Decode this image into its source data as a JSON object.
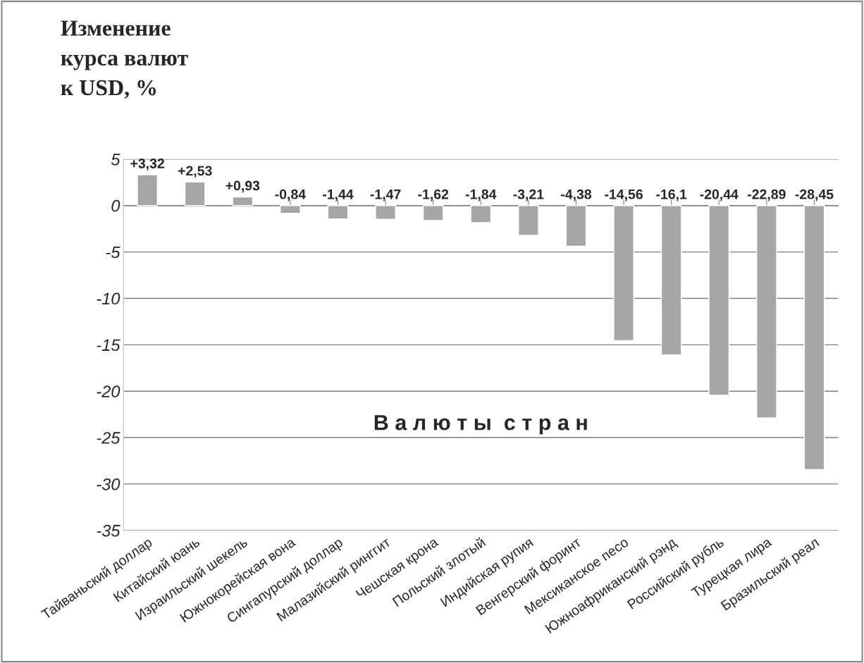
{
  "chart_data": {
    "type": "bar",
    "title": "Изменение\nкурса валют\nк USD, %",
    "xlabel": "В а л ю т ы  с т р а н",
    "categories": [
      "Тайваньский доллар",
      "Китайский юань",
      "Израильский шекель",
      "Южнокорейская вона",
      "Сингапурский доллар",
      "Малазийский ринггит",
      "Чешская крона",
      "Польский злотый",
      "Индийская рупия",
      "Венгерский форинт",
      "Мексиканское песо",
      "Южноафриканский рэнд",
      "Российский рубль",
      "Турецкая лира",
      "Бразильский реал"
    ],
    "values": [
      3.32,
      2.53,
      0.93,
      -0.84,
      -1.44,
      -1.47,
      -1.62,
      -1.84,
      -3.21,
      -4.38,
      -14.56,
      -16.1,
      -20.44,
      -22.89,
      -28.45
    ],
    "value_labels": [
      "+3,32",
      "+2,53",
      "+0,93",
      "-0,84",
      "-1,44",
      "-1,47",
      "-1,62",
      "-1,84",
      "-3,21",
      "-4,38",
      "-14,56",
      "-16,1",
      "-20,44",
      "-22,89",
      "-28,45"
    ],
    "color": "#a6a6a6",
    "ylim": [
      -35,
      5
    ],
    "yticks": [
      -35,
      -30,
      -25,
      -20,
      -15,
      -10,
      -5,
      0,
      5
    ],
    "grid": "y",
    "legend": false
  }
}
